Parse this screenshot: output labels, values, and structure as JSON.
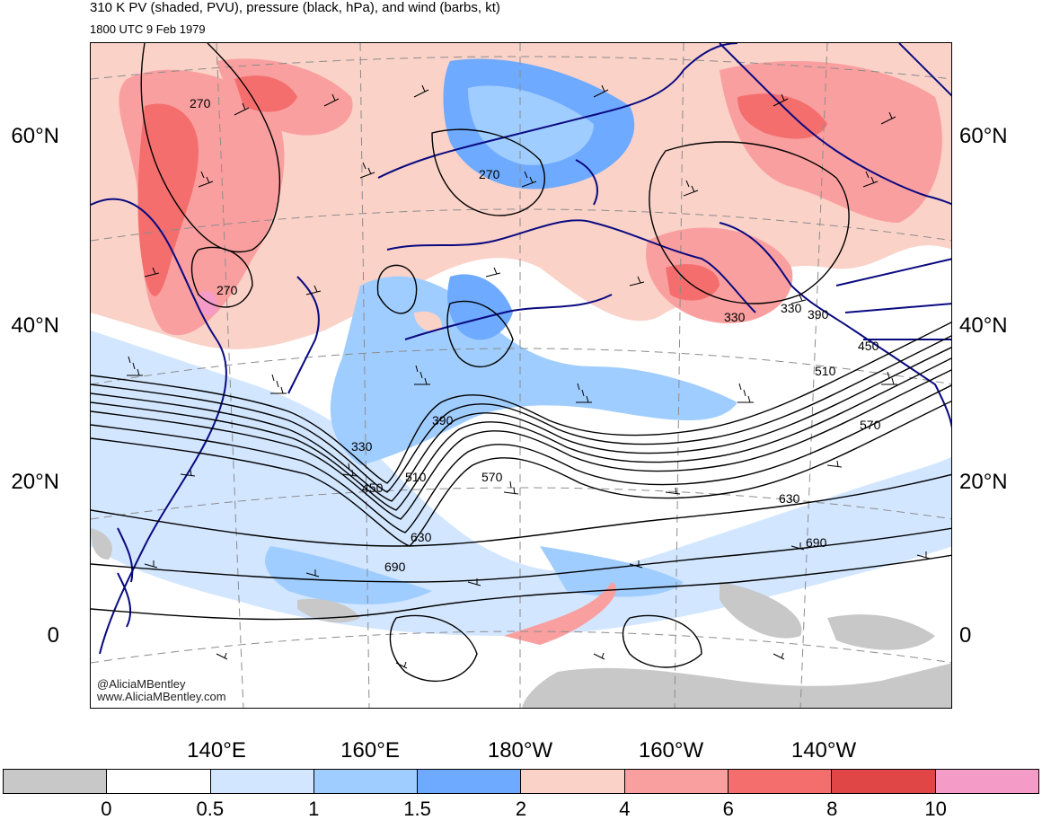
{
  "title": "310 K PV (shaded, PVU), pressure (black, hPa), and wind (barbs, kt)",
  "subtitle": "1800 UTC 9 Feb 1979",
  "latitude_labels": [
    "60°N",
    "40°N",
    "20°N",
    "0"
  ],
  "longitude_labels": [
    "140°E",
    "160°E",
    "180°W",
    "160°W",
    "140°W"
  ],
  "pressure_contour_labels": [
    "270",
    "270",
    "270",
    "330",
    "330",
    "330",
    "390",
    "390",
    "450",
    "450",
    "510",
    "510",
    "570",
    "570",
    "630",
    "630",
    "690",
    "690"
  ],
  "credits": {
    "twitter": "@AliciaMBentley",
    "website": "www.AliciaMBentley.com"
  },
  "colorbar": {
    "colors": [
      "#c8c8c8",
      "#ffffff",
      "#d2e6ff",
      "#a0cdff",
      "#6eaaff",
      "#fad2c8",
      "#fa9f9f",
      "#f56e6e",
      "#e14646",
      "#f59bc8"
    ],
    "labels": [
      "0",
      "0.5",
      "1",
      "1.5",
      "2",
      "4",
      "6",
      "8",
      "10"
    ]
  },
  "colors": {
    "coastline": "#0a0a80",
    "contour": "#000000",
    "gridline": "#8c8c8c"
  }
}
